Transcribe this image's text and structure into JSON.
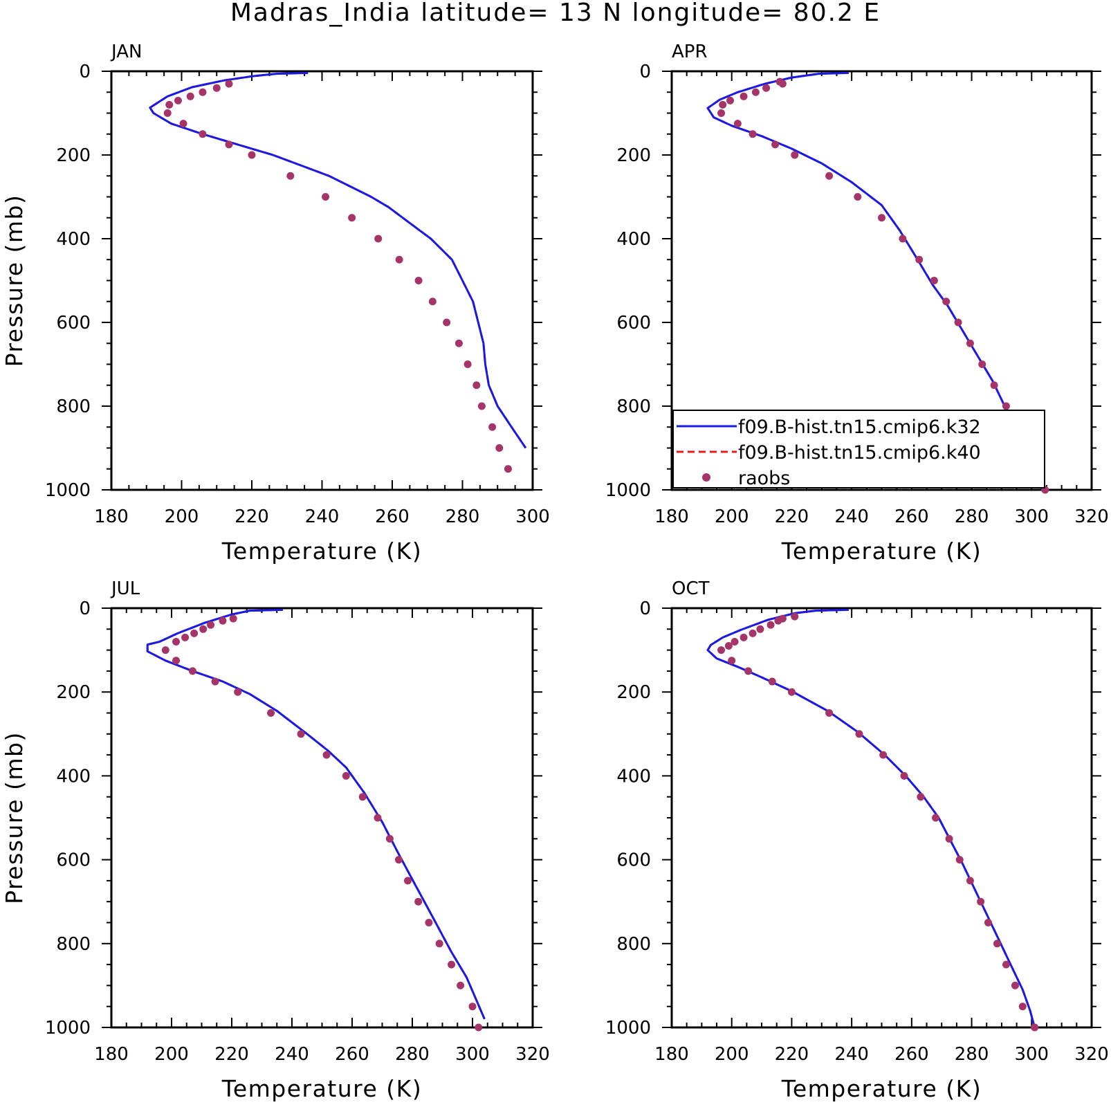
{
  "title": "Madras_India  latitude= 13 N longitude= 80.2 E",
  "colors": {
    "k32": "#1a1ae6",
    "k40": "#e61a1a",
    "raobs": "#a53568"
  },
  "chart_data": [
    {
      "type": "line",
      "panel": "JAN",
      "xlabel": "Temperature (K)",
      "ylabel": "Pressure (mb)",
      "xlim": [
        180,
        300
      ],
      "ylim": [
        1000,
        0
      ],
      "xticks": [
        "180",
        "200",
        "220",
        "240",
        "260",
        "280",
        "300"
      ],
      "yticks": [
        "0",
        "200",
        "400",
        "600",
        "800",
        "1000"
      ],
      "grid": false,
      "series": [
        {
          "name": "f09.B-hist.tn15.cmip6.k32",
          "style": "solid",
          "x": [
            236,
            227,
            220,
            212,
            203,
            196,
            191,
            192,
            197,
            206,
            216,
            226,
            234,
            242,
            248,
            254,
            259,
            263,
            267,
            271,
            274,
            277,
            280,
            283,
            284.5,
            286,
            286.5,
            287.5,
            290,
            294,
            298
          ],
          "y": [
            4,
            6,
            12,
            22,
            38,
            60,
            87,
            100,
            125,
            150,
            175,
            200,
            225,
            250,
            275,
            300,
            325,
            350,
            375,
            400,
            425,
            450,
            500,
            550,
            600,
            650,
            700,
            750,
            800,
            850,
            900
          ]
        },
        {
          "name": "f09.B-hist.tn15.cmip6.k40",
          "style": "dashed",
          "x": [
            236,
            227,
            220,
            212,
            203,
            196,
            191,
            192,
            197,
            206,
            216,
            226,
            234,
            242,
            248,
            254,
            259,
            263,
            267,
            271,
            274,
            277,
            280,
            283,
            284.5,
            286,
            286.5,
            287.5,
            290,
            294,
            298
          ],
          "y": [
            4,
            6,
            12,
            22,
            38,
            60,
            87,
            100,
            125,
            150,
            175,
            200,
            225,
            250,
            275,
            300,
            325,
            350,
            375,
            400,
            425,
            450,
            500,
            550,
            600,
            650,
            700,
            750,
            800,
            850,
            900
          ]
        },
        {
          "name": "raobs",
          "style": "markers",
          "x": [
            213.5,
            210,
            206,
            202.5,
            199,
            196.5,
            196,
            200.5,
            206,
            213.5,
            220,
            231,
            241,
            248.5,
            256,
            262,
            267.5,
            271.5,
            275.5,
            279,
            281.5,
            284,
            285.5,
            288.5,
            290.5,
            293
          ],
          "y": [
            30,
            40,
            50,
            60,
            70,
            80,
            100,
            125,
            150,
            175,
            200,
            250,
            300,
            350,
            400,
            450,
            500,
            550,
            600,
            650,
            700,
            750,
            800,
            850,
            900,
            950
          ]
        }
      ]
    },
    {
      "type": "line",
      "panel": "APR",
      "xlabel": "Temperature (K)",
      "ylabel": "",
      "xlim": [
        180,
        320
      ],
      "ylim": [
        1000,
        0
      ],
      "xticks": [
        "180",
        "200",
        "220",
        "240",
        "260",
        "280",
        "300",
        "320"
      ],
      "yticks": [
        "0",
        "200",
        "400",
        "600",
        "800",
        "1000"
      ],
      "grid": false,
      "series": [
        {
          "name": "f09.B-hist.tn15.cmip6.k32",
          "style": "solid",
          "x": [
            239,
            229,
            220,
            211,
            202,
            196,
            192,
            194,
            200,
            210,
            220,
            230,
            240,
            250,
            256,
            262,
            267,
            272,
            277,
            282,
            287,
            291,
            293,
            294,
            295,
            297,
            300,
            304
          ],
          "y": [
            4,
            6,
            15,
            30,
            50,
            68,
            88,
            110,
            130,
            155,
            185,
            220,
            265,
            320,
            380,
            450,
            510,
            560,
            620,
            680,
            740,
            800,
            850,
            880,
            900,
            940,
            980,
            1000
          ]
        },
        {
          "name": "f09.B-hist.tn15.cmip6.k40",
          "style": "dashed",
          "x": [
            239,
            229,
            220,
            211,
            202,
            196,
            192,
            194,
            200,
            210,
            220,
            230,
            240,
            250,
            256,
            262,
            267,
            272,
            277,
            282,
            287,
            291,
            293,
            294,
            295,
            297,
            300,
            304
          ],
          "y": [
            4,
            6,
            15,
            30,
            50,
            68,
            88,
            110,
            130,
            155,
            185,
            220,
            265,
            320,
            380,
            450,
            510,
            560,
            620,
            680,
            740,
            800,
            850,
            880,
            900,
            940,
            980,
            1000
          ]
        },
        {
          "name": "raobs",
          "style": "markers",
          "x": [
            216,
            217,
            211.5,
            208,
            204,
            199.5,
            197,
            196.5,
            202,
            207,
            214.5,
            221,
            232.5,
            242,
            250,
            257,
            262.5,
            267.5,
            271.5,
            275.5,
            279.5,
            283.5,
            287.5,
            291.5,
            294.5,
            297.5,
            298.5,
            304.5
          ],
          "y": [
            25,
            30,
            40,
            50,
            60,
            70,
            80,
            100,
            125,
            150,
            175,
            200,
            250,
            300,
            350,
            400,
            450,
            500,
            550,
            600,
            650,
            700,
            750,
            800,
            850,
            900,
            950,
            1000
          ]
        }
      ]
    },
    {
      "type": "line",
      "panel": "JUL",
      "xlabel": "Temperature (K)",
      "ylabel": "Pressure (mb)",
      "xlim": [
        180,
        320
      ],
      "ylim": [
        1000,
        0
      ],
      "xticks": [
        "180",
        "200",
        "220",
        "240",
        "260",
        "280",
        "300",
        "320"
      ],
      "yticks": [
        "0",
        "200",
        "400",
        "600",
        "800",
        "1000"
      ],
      "grid": false,
      "series": [
        {
          "name": "f09.B-hist.tn15.cmip6.k32",
          "style": "solid",
          "x": [
            237,
            226,
            220,
            211,
            202,
            196,
            192,
            192,
            198,
            207,
            217,
            226,
            235,
            245,
            252,
            258,
            264,
            270,
            275,
            281,
            287,
            293,
            298,
            301,
            304
          ],
          "y": [
            4,
            6,
            15,
            35,
            60,
            80,
            87,
            103,
            125,
            150,
            175,
            205,
            245,
            300,
            340,
            380,
            440,
            510,
            580,
            660,
            740,
            820,
            880,
            930,
            980
          ]
        },
        {
          "name": "f09.B-hist.tn15.cmip6.k40",
          "style": "dashed",
          "x": [
            237,
            226,
            220,
            211,
            202,
            196,
            192,
            192,
            198,
            207,
            217,
            226,
            235,
            245,
            252,
            258,
            264,
            270,
            275,
            281,
            287,
            293,
            298,
            301,
            304
          ],
          "y": [
            4,
            6,
            15,
            35,
            60,
            80,
            87,
            103,
            125,
            150,
            175,
            205,
            245,
            300,
            340,
            380,
            440,
            510,
            580,
            660,
            740,
            820,
            880,
            930,
            980
          ]
        },
        {
          "name": "raobs",
          "style": "markers",
          "x": [
            220.5,
            217,
            213,
            210.5,
            207.5,
            204.5,
            201.5,
            198,
            201.5,
            207,
            214.5,
            222,
            233,
            243,
            251.5,
            258,
            263.5,
            268.5,
            272.5,
            275.5,
            278.5,
            282,
            285.5,
            289,
            293,
            296,
            300,
            302
          ],
          "y": [
            25,
            30,
            40,
            50,
            60,
            70,
            80,
            100,
            125,
            150,
            175,
            200,
            250,
            300,
            350,
            400,
            450,
            500,
            550,
            600,
            650,
            700,
            750,
            800,
            850,
            900,
            950,
            1000
          ]
        }
      ]
    },
    {
      "type": "line",
      "panel": "OCT",
      "xlabel": "Temperature (K)",
      "ylabel": "",
      "xlim": [
        180,
        320
      ],
      "ylim": [
        1000,
        0
      ],
      "xticks": [
        "180",
        "200",
        "220",
        "240",
        "260",
        "280",
        "300",
        "320"
      ],
      "yticks": [
        "0",
        "200",
        "400",
        "600",
        "800",
        "1000"
      ],
      "grid": false,
      "series": [
        {
          "name": "f09.B-hist.tn15.cmip6.k32",
          "style": "solid",
          "x": [
            239,
            228,
            221,
            212,
            203,
            197,
            193,
            192,
            195,
            202,
            210,
            220,
            232,
            242,
            251,
            258,
            264,
            269,
            273,
            277,
            281,
            285,
            289,
            293,
            297,
            299.5,
            301
          ],
          "y": [
            4,
            6,
            12,
            28,
            52,
            70,
            88,
            100,
            120,
            140,
            165,
            198,
            245,
            295,
            350,
            400,
            450,
            500,
            555,
            610,
            670,
            730,
            790,
            850,
            910,
            960,
            1000
          ]
        },
        {
          "name": "f09.B-hist.tn15.cmip6.k40",
          "style": "dashed",
          "x": [
            239,
            228,
            221,
            212,
            203,
            197,
            193,
            192,
            195,
            202,
            210,
            220,
            232,
            242,
            251,
            258,
            264,
            269,
            273,
            277,
            281,
            285,
            289,
            293,
            297,
            299.5,
            301
          ],
          "y": [
            4,
            6,
            12,
            28,
            52,
            70,
            88,
            100,
            120,
            140,
            165,
            198,
            245,
            295,
            350,
            400,
            450,
            500,
            555,
            610,
            670,
            730,
            790,
            850,
            910,
            960,
            1000
          ]
        },
        {
          "name": "raobs",
          "style": "markers",
          "x": [
            221,
            217,
            215.5,
            213,
            209.5,
            207,
            204,
            201,
            199,
            196.5,
            200,
            205.5,
            213.5,
            220,
            232.5,
            242.5,
            250.5,
            257.5,
            263,
            268,
            272.5,
            276,
            279.5,
            283,
            285.5,
            288.5,
            291.5,
            294.5,
            297,
            301
          ],
          "y": [
            20,
            25,
            30,
            40,
            50,
            60,
            70,
            80,
            90,
            100,
            125,
            150,
            175,
            200,
            250,
            300,
            350,
            400,
            450,
            500,
            550,
            600,
            650,
            700,
            750,
            800,
            850,
            900,
            950,
            1000
          ]
        }
      ]
    }
  ],
  "legend": {
    "panel": "APR",
    "items": [
      {
        "label": "f09.B-hist.tn15.cmip6.k32",
        "style": "solid",
        "color_key": "k32"
      },
      {
        "label": "f09.B-hist.tn15.cmip6.k40",
        "style": "dashed",
        "color_key": "k40"
      },
      {
        "label": "raobs",
        "style": "markers",
        "color_key": "raobs"
      }
    ]
  }
}
